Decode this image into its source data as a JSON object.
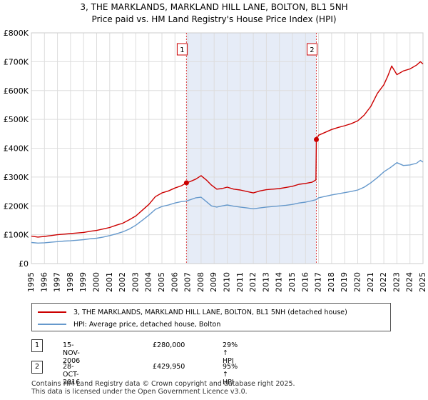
{
  "header": {
    "title_line1": "3, THE MARKLANDS, MARKLAND HILL LANE, BOLTON, BL1 5NH",
    "title_line2": "Price paid vs. HM Land Registry's House Price Index (HPI)"
  },
  "chart_data": {
    "type": "line",
    "title": "3, THE MARKLANDS, MARKLAND HILL LANE, BOLTON, BL1 5NH",
    "subtitle": "Price paid vs. HM Land Registry's House Price Index (HPI)",
    "xlabel": "",
    "ylabel": "",
    "xlim": [
      1995,
      2025
    ],
    "ylim": [
      0,
      800000
    ],
    "x_ticks": [
      "1995",
      "1996",
      "1997",
      "1998",
      "1999",
      "2000",
      "2001",
      "2002",
      "2003",
      "2004",
      "2005",
      "2006",
      "2007",
      "2008",
      "2009",
      "2010",
      "2011",
      "2012",
      "2013",
      "2014",
      "2015",
      "2016",
      "2017",
      "2018",
      "2019",
      "2020",
      "2021",
      "2022",
      "2023",
      "2024",
      "2025"
    ],
    "y_ticks": [
      {
        "value": 0,
        "label": "£0"
      },
      {
        "value": 100000,
        "label": "£100K"
      },
      {
        "value": 200000,
        "label": "£200K"
      },
      {
        "value": 300000,
        "label": "£300K"
      },
      {
        "value": 400000,
        "label": "£400K"
      },
      {
        "value": 500000,
        "label": "£500K"
      },
      {
        "value": 600000,
        "label": "£600K"
      },
      {
        "value": 700000,
        "label": "£700K"
      },
      {
        "value": 800000,
        "label": "£800K"
      }
    ],
    "shaded_region": [
      2006.88,
      2016.83
    ],
    "series": [
      {
        "name": "3, THE MARKLANDS, MARKLAND HILL LANE, BOLTON, BL1 5NH (detached house)",
        "color": "#cc0000",
        "x": [
          1995.0,
          1995.5,
          1996.0,
          1996.5,
          1997.0,
          1997.5,
          1998.0,
          1998.5,
          1999.0,
          1999.5,
          2000.0,
          2000.5,
          2001.0,
          2001.5,
          2002.0,
          2002.5,
          2003.0,
          2003.5,
          2004.0,
          2004.5,
          2005.0,
          2005.5,
          2006.0,
          2006.5,
          2006.88,
          2007.2,
          2007.6,
          2008.0,
          2008.4,
          2008.8,
          2009.2,
          2009.6,
          2010.0,
          2010.5,
          2011.0,
          2011.5,
          2012.0,
          2012.5,
          2013.0,
          2013.5,
          2014.0,
          2014.5,
          2015.0,
          2015.5,
          2016.0,
          2016.5,
          2016.8,
          2016.83,
          2017.0,
          2017.5,
          2018.0,
          2018.5,
          2019.0,
          2019.5,
          2020.0,
          2020.5,
          2021.0,
          2021.5,
          2022.0,
          2022.3,
          2022.6,
          2023.0,
          2023.5,
          2024.0,
          2024.5,
          2024.8,
          2025.0
        ],
        "y": [
          95000,
          92000,
          94000,
          97000,
          100000,
          102000,
          104000,
          106000,
          108000,
          112000,
          115000,
          120000,
          125000,
          133000,
          140000,
          152000,
          165000,
          185000,
          205000,
          232000,
          245000,
          252000,
          262000,
          270000,
          280000,
          285000,
          293000,
          305000,
          290000,
          272000,
          258000,
          260000,
          265000,
          258000,
          255000,
          250000,
          245000,
          252000,
          256000,
          258000,
          260000,
          264000,
          268000,
          275000,
          278000,
          282000,
          290000,
          429950,
          445000,
          455000,
          465000,
          472000,
          478000,
          485000,
          495000,
          515000,
          545000,
          590000,
          620000,
          650000,
          685000,
          655000,
          668000,
          675000,
          688000,
          700000,
          692000
        ]
      },
      {
        "name": "HPI: Average price, detached house, Bolton",
        "color": "#6699cc",
        "x": [
          1995.0,
          1995.5,
          1996.0,
          1996.5,
          1997.0,
          1997.5,
          1998.0,
          1998.5,
          1999.0,
          1999.5,
          2000.0,
          2000.5,
          2001.0,
          2001.5,
          2002.0,
          2002.5,
          2003.0,
          2003.5,
          2004.0,
          2004.5,
          2005.0,
          2005.5,
          2006.0,
          2006.5,
          2006.88,
          2007.2,
          2007.6,
          2008.0,
          2008.4,
          2008.8,
          2009.2,
          2009.6,
          2010.0,
          2010.5,
          2011.0,
          2011.5,
          2012.0,
          2012.5,
          2013.0,
          2013.5,
          2014.0,
          2014.5,
          2015.0,
          2015.5,
          2016.0,
          2016.5,
          2016.83,
          2017.0,
          2017.5,
          2018.0,
          2018.5,
          2019.0,
          2019.5,
          2020.0,
          2020.5,
          2021.0,
          2021.5,
          2022.0,
          2022.5,
          2023.0,
          2023.5,
          2024.0,
          2024.5,
          2024.8,
          2025.0
        ],
        "y": [
          73000,
          71000,
          72000,
          74000,
          76000,
          78000,
          79000,
          81000,
          83000,
          86000,
          88000,
          92000,
          97000,
          103000,
          110000,
          120000,
          133000,
          150000,
          168000,
          188000,
          198000,
          203000,
          210000,
          215000,
          217000,
          222000,
          228000,
          230000,
          215000,
          200000,
          196000,
          200000,
          203000,
          199000,
          196000,
          193000,
          190000,
          193000,
          196000,
          198000,
          200000,
          202000,
          205000,
          210000,
          213000,
          218000,
          222000,
          228000,
          233000,
          238000,
          242000,
          246000,
          250000,
          255000,
          265000,
          280000,
          298000,
          318000,
          333000,
          350000,
          340000,
          342000,
          348000,
          358000,
          352000
        ]
      }
    ],
    "markers": [
      {
        "label": "1",
        "x": 2006.88,
        "y": 280000
      },
      {
        "label": "2",
        "x": 2016.83,
        "y": 429950
      }
    ],
    "legend_position": "bottom"
  },
  "legend": {
    "items": [
      {
        "label": "3, THE MARKLANDS, MARKLAND HILL LANE, BOLTON, BL1 5NH (detached house)",
        "color": "#cc0000"
      },
      {
        "label": "HPI: Average price, detached house, Bolton",
        "color": "#6699cc"
      }
    ]
  },
  "transactions": [
    {
      "num": "1",
      "date": "15-NOV-2006",
      "price": "£280,000",
      "hpi": "29% ↑ HPI"
    },
    {
      "num": "2",
      "date": "28-OCT-2016",
      "price": "£429,950",
      "hpi": "95% ↑ HPI"
    }
  ],
  "footer": {
    "line1": "Contains HM Land Registry data © Crown copyright and database right 2025.",
    "line2": "This data is licensed under the Open Government Licence v3.0."
  }
}
